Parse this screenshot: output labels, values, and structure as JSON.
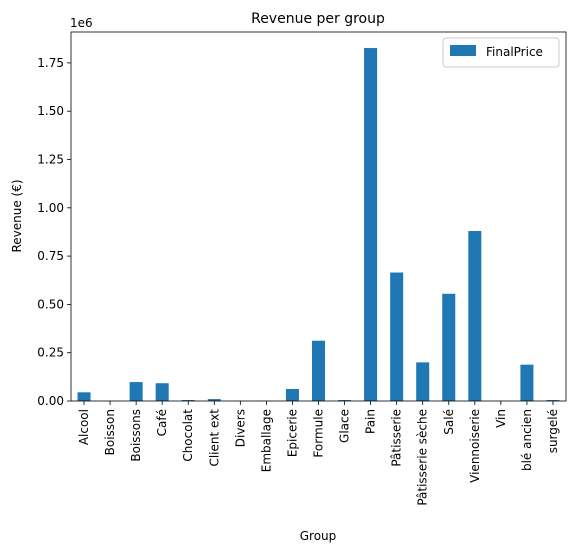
{
  "chart_data": {
    "type": "bar",
    "title": "Revenue per group",
    "xlabel": "Group",
    "ylabel": "Revenue (€)",
    "offset_text": "1e6",
    "categories": [
      "Alcool",
      "Boisson",
      "Boissons",
      "Café",
      "Chocolat",
      "Client ext",
      "Divers",
      "Emballage",
      "Epicerie",
      "Formule",
      "Glace",
      "Pain",
      "Pâtisserie",
      "Pâtisserie sèche",
      "Salé",
      "Viennoiserie",
      "Vin",
      "blé ancien",
      "surgelé"
    ],
    "series": [
      {
        "name": "FinalPrice",
        "values": [
          45000,
          500,
          98000,
          92000,
          5000,
          10000,
          500,
          1000,
          62000,
          312000,
          5000,
          1827000,
          665000,
          200000,
          555000,
          880000,
          1000,
          188000,
          5000
        ]
      }
    ],
    "ylim": [
      0,
      1910000
    ],
    "yticks": [
      0,
      250000,
      500000,
      750000,
      1000000,
      1250000,
      1500000,
      1750000
    ],
    "ytick_labels": [
      "0.00",
      "0.25",
      "0.50",
      "0.75",
      "1.00",
      "1.25",
      "1.50",
      "1.75"
    ],
    "grid": false,
    "legend_position": "top-right",
    "colors": {
      "bar": "#1f77b4"
    }
  }
}
